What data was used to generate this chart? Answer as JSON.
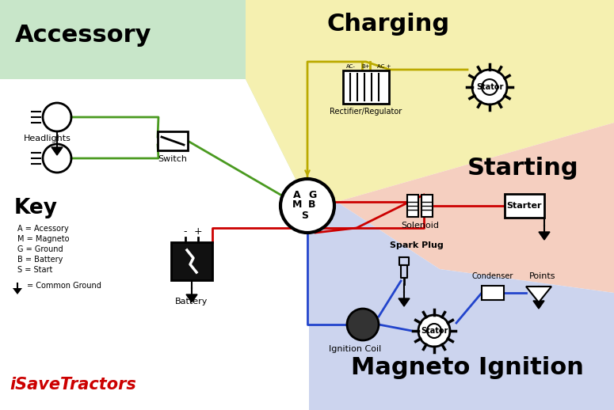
{
  "bg_color": "#ffffff",
  "section_colors": {
    "accessory": "#c8e6c9",
    "charging": "#f5f0b0",
    "starting": "#f5cfc0",
    "magneto": "#ccd4ee"
  },
  "section_titles": {
    "accessory": "Accessory",
    "charging": "Charging",
    "starting": "Starting",
    "magneto": "Magneto Ignition"
  },
  "key_title": "Key",
  "key_items": [
    "A = Acessory",
    "M = Magneto",
    "G = Ground",
    "B = Battery",
    "S = Start"
  ],
  "key_ground": "= Common Ground",
  "brand": "iSaveTractors",
  "brand_color": "#cc0000",
  "wire_colors": {
    "green": "#4a9a20",
    "yellow": "#bbaa00",
    "red": "#cc0000",
    "blue": "#2244cc",
    "black": "#000000"
  },
  "component_labels": {
    "headlights": "Headlights",
    "switch": "Switch",
    "rectifier": "Rectifier/Regulator",
    "stator_charge": "Stator",
    "solenoid": "Solenoid",
    "starter": "Starter",
    "battery": "Battery",
    "spark_plug": "Spark Plug",
    "ignition_coil": "Ignition Coil",
    "stator_mag": "Stator",
    "condenser": "Condenser",
    "points": "Points"
  },
  "figsize": [
    7.75,
    5.18
  ],
  "dpi": 100
}
